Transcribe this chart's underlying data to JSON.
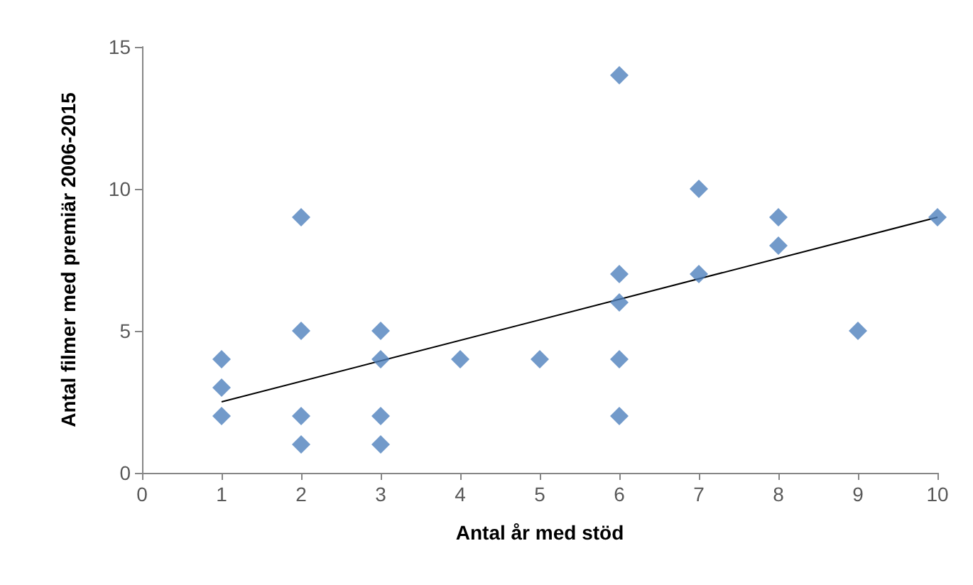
{
  "chart_data": {
    "type": "scatter",
    "xlabel": "Antal år med stöd",
    "ylabel": "Antal filmer med premiär 2006-2015",
    "xlim": [
      0,
      10
    ],
    "xticks": [
      0,
      1,
      2,
      3,
      4,
      5,
      6,
      7,
      8,
      9,
      10
    ],
    "ylim": [
      0,
      15
    ],
    "yticks": [
      0,
      5,
      10,
      15
    ],
    "grid": false,
    "marker": "diamond",
    "series": [
      {
        "color": "#4f81bd",
        "x": [
          1,
          1,
          1,
          2,
          2,
          2,
          2,
          3,
          3,
          3,
          3,
          4,
          5,
          6,
          6,
          6,
          6,
          6,
          7,
          7,
          8,
          8,
          9,
          10
        ],
        "values": [
          4,
          3,
          2,
          9,
          5,
          2,
          1,
          5,
          4,
          2,
          1,
          4,
          4,
          14,
          7,
          6,
          4,
          2,
          10,
          7,
          9,
          8,
          5,
          9
        ]
      },
      {
        "type": "line",
        "color": "#000000",
        "marker": "none",
        "x": [
          1,
          10
        ],
        "values": [
          2.5,
          9.0
        ]
      }
    ]
  }
}
